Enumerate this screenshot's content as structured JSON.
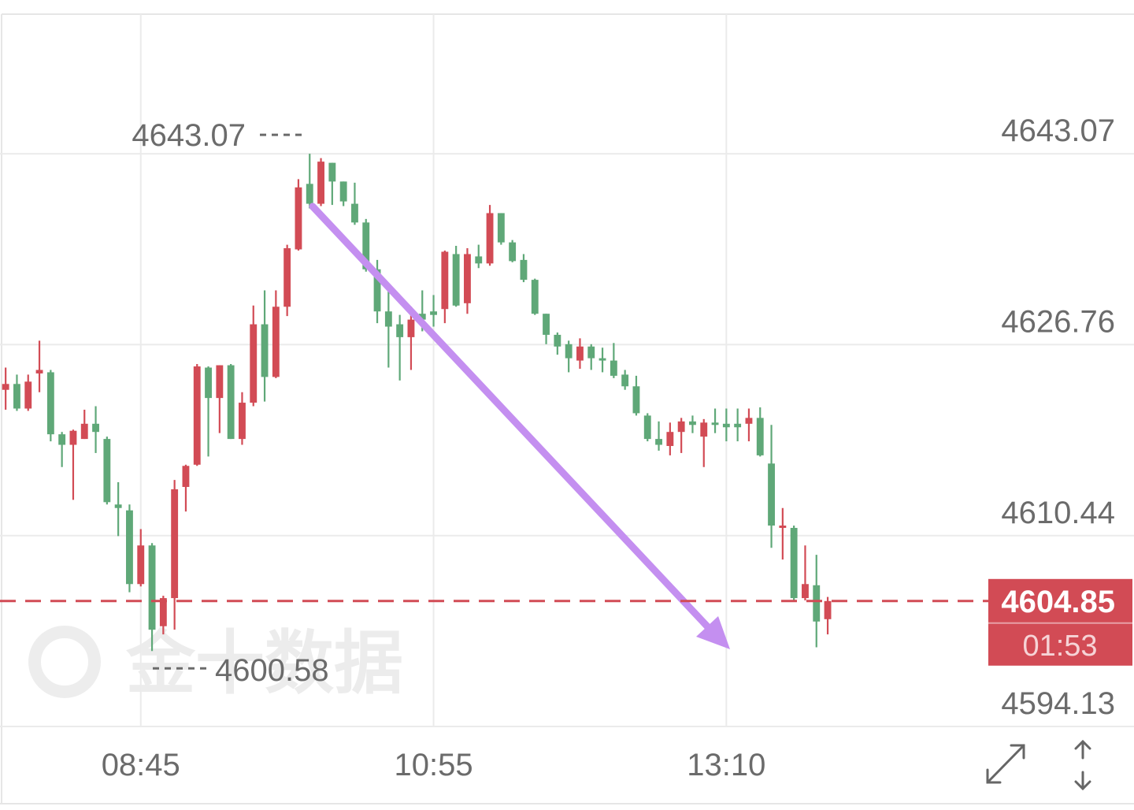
{
  "chart_data": {
    "type": "candlestick",
    "categories": [
      null,
      null,
      null,
      null,
      null,
      null,
      null,
      null,
      null,
      null,
      null,
      null,
      "08:45",
      null,
      null,
      null,
      null,
      null,
      null,
      null,
      null,
      null,
      null,
      null,
      null,
      null,
      null,
      null,
      null,
      null,
      null,
      null,
      null,
      null,
      null,
      null,
      null,
      null,
      "10:55",
      null,
      null,
      null,
      null,
      null,
      null,
      null,
      null,
      null,
      null,
      null,
      null,
      null,
      null,
      null,
      null,
      null,
      null,
      null,
      null,
      null,
      null,
      null,
      null,
      null,
      "13:10",
      null,
      null,
      null,
      null,
      null,
      null,
      null,
      null,
      null
    ],
    "open": [
      4622.9,
      4623.4,
      4621.3,
      4624.3,
      4624.4,
      4619.1,
      4618.2,
      4618.7,
      4620.0,
      4618.7,
      4613.1,
      4612.6,
      4606.3,
      4609.6,
      4602.7,
      4605.1,
      4614.6,
      4616.5,
      4624.8,
      4622.2,
      4625.0,
      4618.7,
      4621.8,
      4628.5,
      4624.0,
      4630.0,
      4634.9,
      4640.5,
      4638.8,
      4642.3,
      4640.7,
      4638.8,
      4637.2,
      4633.2,
      4629.6,
      4628.5,
      4627.4,
      4629.4,
      4629.6,
      4629.8,
      4634.5,
      4630.3,
      4634.3,
      4633.7,
      4638.0,
      4635.5,
      4634.0,
      4632.3,
      4629.4,
      4627.6,
      4626.8,
      4625.4,
      4626.6,
      4625.6,
      4625.4,
      4624.2,
      4623.2,
      4620.7,
      4618.7,
      4618.1,
      4619.3,
      4620.2,
      4618.9,
      4620.1,
      4620.0,
      4620.0,
      4620.0,
      4620.5,
      4616.6,
      4611.1,
      4611.1,
      4605.1,
      4606.2,
      4603.3
    ],
    "high": [
      4624.8,
      4624.2,
      4624.2,
      4627.1,
      4624.6,
      4619.3,
      4619.5,
      4621.2,
      4621.5,
      4618.9,
      4615.0,
      4613.1,
      4611.0,
      4609.8,
      4605.3,
      4615.2,
      4616.5,
      4625.1,
      4624.9,
      4625.0,
      4625.1,
      4622.7,
      4630.1,
      4631.4,
      4631.4,
      4635.3,
      4640.9,
      4643.07,
      4642.7,
      4642.3,
      4640.7,
      4640.6,
      4637.5,
      4634.0,
      4631.3,
      4629.3,
      4630.0,
      4631.4,
      4631.0,
      4634.8,
      4635.2,
      4635.0,
      4635.3,
      4638.7,
      4638.0,
      4635.7,
      4634.5,
      4632.4,
      4629.4,
      4627.8,
      4627.1,
      4627.3,
      4626.8,
      4626.5,
      4626.9,
      4624.6,
      4624.1,
      4620.9,
      4620.2,
      4620.1,
      4620.5,
      4620.7,
      4620.4,
      4621.3,
      4621.3,
      4621.3,
      4621.3,
      4621.4,
      4619.9,
      4612.8,
      4611.3,
      4609.6,
      4608.8,
      4605.2
    ],
    "low": [
      4621.2,
      4621.1,
      4621.1,
      4622.7,
      4618.5,
      4616.3,
      4613.5,
      4618.7,
      4617.5,
      4613.1,
      4610.4,
      4605.6,
      4606.1,
      4600.58,
      4602.0,
      4602.4,
      4612.5,
      4616.4,
      4617.2,
      4619.2,
      4618.7,
      4618.2,
      4621.5,
      4621.9,
      4623.9,
      4629.2,
      4634.8,
      4638.4,
      4638.6,
      4638.7,
      4638.6,
      4637.0,
      4633.0,
      4628.6,
      4624.8,
      4623.7,
      4624.6,
      4627.9,
      4628.3,
      4628.6,
      4630.0,
      4629.4,
      4633.3,
      4633.5,
      4635.3,
      4633.8,
      4632.1,
      4629.3,
      4626.8,
      4625.9,
      4624.4,
      4624.7,
      4624.6,
      4624.4,
      4623.9,
      4622.9,
      4620.7,
      4618.5,
      4617.7,
      4617.3,
      4617.5,
      4619.2,
      4616.3,
      4619.2,
      4618.5,
      4618.5,
      4618.5,
      4617.2,
      4609.4,
      4608.4,
      4604.9,
      4604.9,
      4600.9,
      4602.0
    ],
    "close": [
      4623.4,
      4621.3,
      4623.6,
      4624.6,
      4619.1,
      4618.2,
      4619.4,
      4620.0,
      4619.3,
      4613.3,
      4612.8,
      4606.3,
      4609.6,
      4602.4,
      4605.1,
      4614.4,
      4616.4,
      4624.9,
      4622.2,
      4625.0,
      4618.7,
      4621.8,
      4628.5,
      4624.0,
      4630.0,
      4635.0,
      4640.2,
      4638.8,
      4642.4,
      4640.7,
      4639.0,
      4637.2,
      4633.2,
      4629.6,
      4628.3,
      4627.4,
      4628.9,
      4628.9,
      4629.3,
      4634.7,
      4630.1,
      4634.5,
      4633.7,
      4638.0,
      4635.5,
      4633.9,
      4632.3,
      4629.4,
      4627.6,
      4626.6,
      4625.6,
      4626.6,
      4625.6,
      4625.4,
      4624.1,
      4623.2,
      4620.9,
      4618.7,
      4618.2,
      4619.3,
      4620.2,
      4619.9,
      4620.1,
      4619.9,
      4619.7,
      4619.7,
      4620.5,
      4617.3,
      4611.3,
      4611.3,
      4605.1,
      4606.3,
      4603.1,
      4604.85
    ],
    "up_color": "#d24b55",
    "down_color": "#5fa878",
    "ylim": [
      4594.13,
      4655
    ],
    "yticks": [
      4594.13,
      4610.44,
      4626.76,
      4643.07
    ],
    "grid": true,
    "high_label": 4643.07,
    "low_label": 4600.58,
    "last_price": 4604.85,
    "countdown": "01:53",
    "watermark": "金十数据"
  }
}
